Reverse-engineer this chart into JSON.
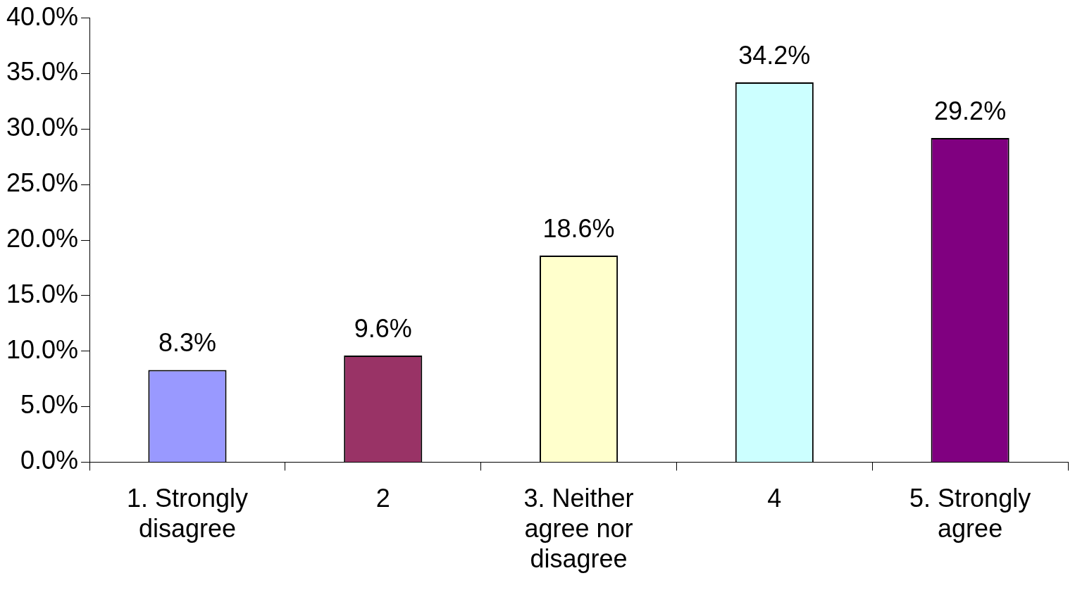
{
  "chart_data": {
    "type": "bar",
    "categories": [
      "1. Strongly disagree",
      "2",
      "3. Neither agree nor disagree",
      "4",
      "5. Strongly agree"
    ],
    "values": [
      8.3,
      9.6,
      18.6,
      34.2,
      29.2
    ],
    "value_labels": [
      "8.3%",
      "9.6%",
      "18.6%",
      "34.2%",
      "29.2%"
    ],
    "colors": [
      "#9999ff",
      "#993366",
      "#ffffcc",
      "#ccffff",
      "#800080"
    ],
    "ylim": [
      0,
      40
    ],
    "yticks": [
      {
        "value": 0,
        "label": "0.0%"
      },
      {
        "value": 5,
        "label": "5.0%"
      },
      {
        "value": 10,
        "label": "10.0%"
      },
      {
        "value": 15,
        "label": "15.0%"
      },
      {
        "value": 20,
        "label": "20.0%"
      },
      {
        "value": 25,
        "label": "25.0%"
      },
      {
        "value": 30,
        "label": "30.0%"
      },
      {
        "value": 35,
        "label": "35.0%"
      },
      {
        "value": 40,
        "label": "40.0%"
      }
    ],
    "grid": false,
    "legend": false
  }
}
